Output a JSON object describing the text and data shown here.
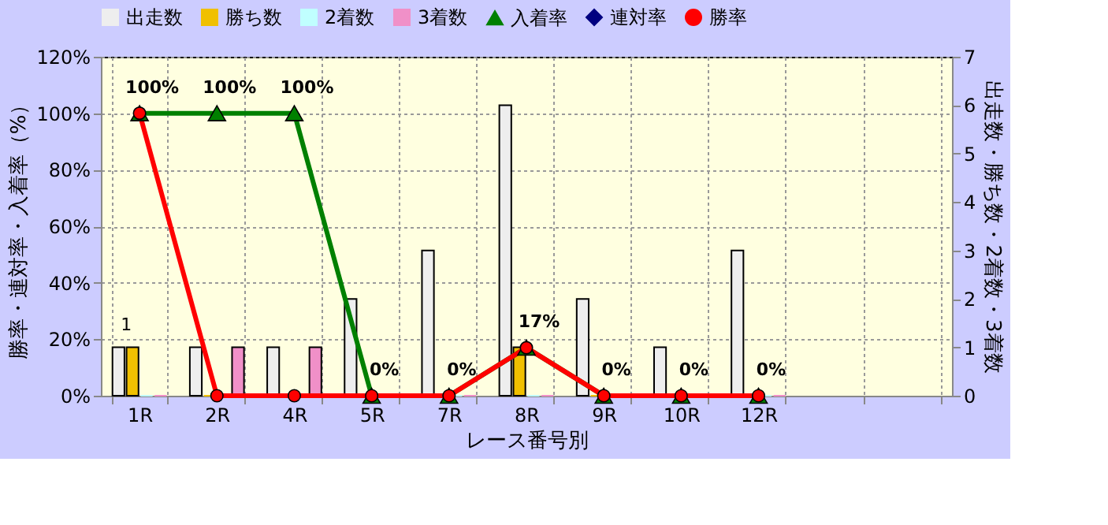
{
  "chart_data": {
    "type": "bar",
    "xlabel": "レース番号別",
    "ylabel": "勝率・連対率・入着率（%）",
    "y2label": "出走数・勝ち数・2着数・3着数",
    "categories": [
      "1R",
      "2R",
      "4R",
      "5R",
      "7R",
      "8R",
      "9R",
      "10R",
      "12R",
      null,
      null
    ],
    "ylim": [
      0,
      120
    ],
    "yticks": [
      {
        "value": 0,
        "label": "0%"
      },
      {
        "value": 20,
        "label": "20%"
      },
      {
        "value": 40,
        "label": "40%"
      },
      {
        "value": 60,
        "label": "60%"
      },
      {
        "value": 80,
        "label": "80%"
      },
      {
        "value": 100,
        "label": "100%"
      },
      {
        "value": 120,
        "label": "120%"
      }
    ],
    "y2lim": [
      0,
      7
    ],
    "y2ticks": [
      0,
      1,
      2,
      3,
      4,
      5,
      6,
      7
    ],
    "grid": true,
    "legend": "top",
    "series": [
      {
        "name": "出走数",
        "axis": "y2",
        "color": "#eeeeee",
        "values": [
          1,
          1,
          1,
          2,
          3,
          6,
          2,
          1,
          3,
          null,
          null
        ]
      },
      {
        "name": "勝ち数",
        "axis": "y2",
        "color": "#f0c000",
        "values": [
          1,
          0,
          0,
          0,
          0,
          1,
          0,
          0,
          0,
          null,
          null
        ],
        "value_labels": [
          "1",
          null,
          null,
          null,
          null,
          null,
          null,
          null,
          null,
          null,
          null
        ]
      },
      {
        "name": "2着数",
        "axis": "y2",
        "color": "#c0ffff",
        "values": [
          0,
          0,
          0,
          0,
          0,
          0,
          0,
          0,
          0,
          null,
          null
        ]
      },
      {
        "name": "3着数",
        "axis": "y2",
        "color": "#f090c8",
        "values": [
          0,
          1,
          1,
          0,
          0,
          0,
          0,
          0,
          0,
          null,
          null
        ]
      },
      {
        "name": "入着率",
        "type": "line",
        "axis": "y",
        "color": "#008000",
        "marker": "triangle",
        "values": [
          100,
          100,
          100,
          0,
          0,
          17,
          0,
          0,
          0,
          null,
          null
        ],
        "value_labels": [
          "100%",
          "100%",
          "100%",
          "0%",
          "0%",
          "17%",
          "0%",
          "0%",
          "0%",
          null,
          null
        ]
      },
      {
        "name": "連対率",
        "type": "line",
        "axis": "y",
        "color": "#000080",
        "marker": "diamond",
        "values": [
          null,
          null,
          null,
          null,
          null,
          null,
          null,
          null,
          null,
          null,
          null
        ]
      },
      {
        "name": "勝率",
        "type": "line",
        "axis": "y",
        "color": "#ff0000",
        "marker": "circle",
        "values": [
          100,
          0,
          0,
          0,
          0,
          17,
          0,
          0,
          0,
          null,
          null
        ]
      }
    ]
  }
}
